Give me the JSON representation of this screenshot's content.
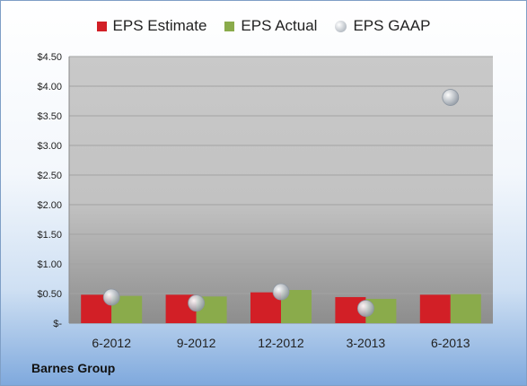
{
  "chart_data": {
    "type": "bar",
    "categories": [
      "6-2012",
      "9-2012",
      "12-2012",
      "3-2013",
      "6-2013"
    ],
    "series": [
      {
        "name": "EPS Estimate",
        "kind": "bar",
        "color": "#d21f26",
        "values": [
          0.48,
          0.48,
          0.52,
          0.44,
          0.48
        ]
      },
      {
        "name": "EPS Actual",
        "kind": "bar",
        "color": "#8aab4b",
        "values": [
          0.46,
          0.45,
          0.56,
          0.41,
          0.49
        ]
      },
      {
        "name": "EPS GAAP",
        "kind": "scatter",
        "color": "#b7bec8",
        "values": [
          0.44,
          0.34,
          0.53,
          0.25,
          3.81
        ]
      }
    ],
    "yticks": [
      "$-",
      "$0.50",
      "$1.00",
      "$1.50",
      "$2.00",
      "$2.50",
      "$3.00",
      "$3.50",
      "$4.00",
      "$4.50"
    ],
    "ylim": [
      0,
      4.5
    ],
    "grid": true,
    "legend_position": "top",
    "plot_background": "#c9c9c9"
  },
  "footer": {
    "company": "Barnes Group"
  }
}
